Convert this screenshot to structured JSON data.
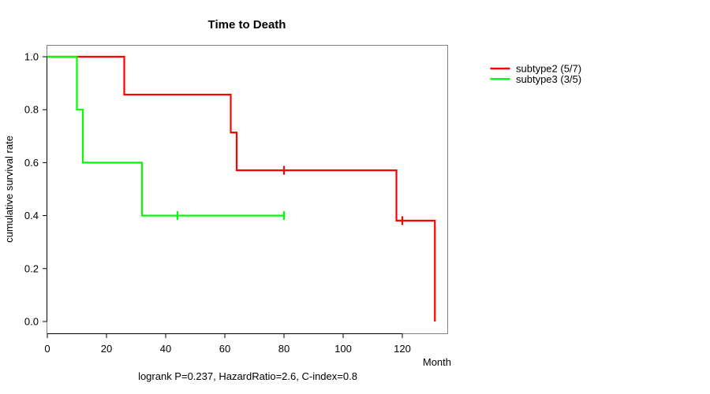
{
  "chart_data": {
    "type": "line",
    "subtype": "kaplan-meier-step-curve",
    "title": "Time to Death",
    "xlabel": "Month",
    "ylabel": "cumulative survival rate",
    "annotation": "logrank P=0.237, HazardRatio=2.6, C-index=0.8",
    "xlim": [
      0,
      135
    ],
    "ylim": [
      0.0,
      1.0
    ],
    "xticks": [
      0,
      20,
      40,
      60,
      80,
      100,
      120
    ],
    "yticks": [
      0.0,
      0.2,
      0.4,
      0.6,
      0.8,
      1.0
    ],
    "grid": false,
    "legend_position": "right-outside",
    "frame_color": "#808080",
    "axis_color": "#000000",
    "series": [
      {
        "name": "subtype2 (5/7)",
        "color": "#ff0000",
        "n_total": 7,
        "n_events": 5,
        "points": [
          [
            0,
            1.0
          ],
          [
            26,
            1.0
          ],
          [
            26,
            0.857
          ],
          [
            62,
            0.857
          ],
          [
            62,
            0.714
          ],
          [
            64,
            0.714
          ],
          [
            64,
            0.571
          ],
          [
            118,
            0.571
          ],
          [
            118,
            0.381
          ],
          [
            131,
            0.381
          ],
          [
            131,
            0.0
          ]
        ],
        "censor_marks": [
          [
            80,
            0.571
          ],
          [
            120,
            0.381
          ]
        ]
      },
      {
        "name": "subtype3 (3/5)",
        "color": "#00ff00",
        "n_total": 5,
        "n_events": 3,
        "points": [
          [
            0,
            1.0
          ],
          [
            10,
            1.0
          ],
          [
            10,
            0.8
          ],
          [
            12,
            0.8
          ],
          [
            12,
            0.6
          ],
          [
            32,
            0.6
          ],
          [
            32,
            0.4
          ],
          [
            80,
            0.4
          ]
        ],
        "censor_marks": [
          [
            44,
            0.4
          ],
          [
            80,
            0.4
          ]
        ]
      }
    ]
  }
}
